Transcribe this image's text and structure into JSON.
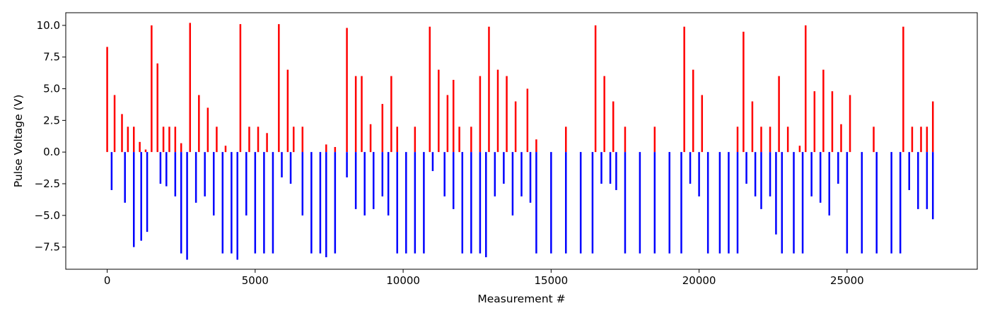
{
  "chart_data": {
    "type": "bar",
    "title": "",
    "xlabel": "Measurement #",
    "ylabel": "Pulse Voltage (V)",
    "xlim": [
      -1400,
      29400
    ],
    "ylim": [
      -9.25,
      11.0
    ],
    "x_ticks": [
      0,
      5000,
      10000,
      15000,
      20000,
      25000
    ],
    "x_tick_labels": [
      "0",
      "5000",
      "10000",
      "15000",
      "20000",
      "25000"
    ],
    "y_ticks": [
      10.0,
      7.5,
      5.0,
      2.5,
      0.0,
      -2.5,
      -5.0,
      -7.5
    ],
    "y_tick_labels": [
      "10.0",
      "7.5",
      "5.0",
      "2.5",
      "0.0",
      "−2.5",
      "−5.0",
      "−7.5"
    ],
    "grid": false,
    "series": [
      {
        "color": "#ff0000",
        "values": [
          [
            0,
            8.3
          ],
          [
            250,
            4.5
          ],
          [
            500,
            3.0
          ],
          [
            700,
            2.0
          ],
          [
            900,
            2.0
          ],
          [
            1100,
            0.8
          ],
          [
            1300,
            0.2
          ],
          [
            1500,
            10.0
          ],
          [
            1700,
            7.0
          ],
          [
            1900,
            2.0
          ],
          [
            2100,
            2.0
          ],
          [
            2300,
            2.0
          ],
          [
            2500,
            0.7
          ],
          [
            2800,
            10.2
          ],
          [
            3100,
            4.5
          ],
          [
            3400,
            3.5
          ],
          [
            3700,
            2.0
          ],
          [
            4000,
            0.5
          ],
          [
            4500,
            10.1
          ],
          [
            4800,
            2.0
          ],
          [
            5100,
            2.0
          ],
          [
            5400,
            1.5
          ],
          [
            5800,
            10.1
          ],
          [
            6100,
            6.5
          ],
          [
            6300,
            2.0
          ],
          [
            6600,
            2.0
          ],
          [
            7400,
            0.6
          ],
          [
            7700,
            0.4
          ],
          [
            8100,
            9.8
          ],
          [
            8400,
            6.0
          ],
          [
            8600,
            6.0
          ],
          [
            8900,
            2.2
          ],
          [
            9300,
            3.8
          ],
          [
            9600,
            6.0
          ],
          [
            9800,
            2.0
          ],
          [
            10400,
            2.0
          ],
          [
            10900,
            9.9
          ],
          [
            11200,
            6.5
          ],
          [
            11500,
            4.5
          ],
          [
            11700,
            5.7
          ],
          [
            11900,
            2.0
          ],
          [
            12300,
            2.0
          ],
          [
            12600,
            6.0
          ],
          [
            12900,
            9.9
          ],
          [
            13200,
            6.5
          ],
          [
            13500,
            6.0
          ],
          [
            13800,
            4.0
          ],
          [
            14200,
            5.0
          ],
          [
            14500,
            1.0
          ],
          [
            15500,
            2.0
          ],
          [
            16500,
            10.0
          ],
          [
            16800,
            6.0
          ],
          [
            17100,
            4.0
          ],
          [
            17500,
            2.0
          ],
          [
            18500,
            2.0
          ],
          [
            19500,
            9.9
          ],
          [
            19800,
            6.5
          ],
          [
            20100,
            4.5
          ],
          [
            21300,
            2.0
          ],
          [
            21500,
            9.5
          ],
          [
            21800,
            4.0
          ],
          [
            22100,
            2.0
          ],
          [
            22400,
            2.0
          ],
          [
            22700,
            6.0
          ],
          [
            23000,
            2.0
          ],
          [
            23400,
            0.5
          ],
          [
            23600,
            10.0
          ],
          [
            23900,
            4.8
          ],
          [
            24200,
            6.5
          ],
          [
            24500,
            4.8
          ],
          [
            24800,
            2.2
          ],
          [
            25100,
            4.5
          ],
          [
            25900,
            2.0
          ],
          [
            26900,
            9.9
          ],
          [
            27200,
            2.0
          ],
          [
            27500,
            2.0
          ],
          [
            27700,
            2.0
          ],
          [
            27900,
            4.0
          ]
        ]
      },
      {
        "color": "#0000ff",
        "values": [
          [
            150,
            -3.0
          ],
          [
            600,
            -4.0
          ],
          [
            900,
            -7.5
          ],
          [
            1150,
            -7.0
          ],
          [
            1350,
            -6.3
          ],
          [
            1800,
            -2.5
          ],
          [
            2000,
            -2.7
          ],
          [
            2300,
            -3.5
          ],
          [
            2500,
            -8.0
          ],
          [
            2700,
            -8.5
          ],
          [
            3000,
            -4.0
          ],
          [
            3300,
            -3.5
          ],
          [
            3600,
            -5.0
          ],
          [
            3900,
            -8.0
          ],
          [
            4200,
            -8.0
          ],
          [
            4400,
            -8.5
          ],
          [
            4700,
            -5.0
          ],
          [
            5000,
            -8.0
          ],
          [
            5300,
            -8.0
          ],
          [
            5600,
            -8.0
          ],
          [
            5900,
            -2.0
          ],
          [
            6200,
            -2.5
          ],
          [
            6600,
            -5.0
          ],
          [
            6900,
            -8.0
          ],
          [
            7200,
            -8.0
          ],
          [
            7400,
            -8.3
          ],
          [
            7700,
            -8.0
          ],
          [
            8100,
            -2.0
          ],
          [
            8400,
            -4.5
          ],
          [
            8700,
            -5.0
          ],
          [
            9000,
            -4.5
          ],
          [
            9300,
            -3.5
          ],
          [
            9500,
            -5.0
          ],
          [
            9800,
            -8.0
          ],
          [
            10100,
            -8.0
          ],
          [
            10400,
            -8.0
          ],
          [
            10700,
            -8.0
          ],
          [
            11000,
            -1.5
          ],
          [
            11400,
            -3.5
          ],
          [
            11700,
            -4.5
          ],
          [
            12000,
            -8.0
          ],
          [
            12300,
            -8.0
          ],
          [
            12600,
            -8.0
          ],
          [
            12800,
            -8.3
          ],
          [
            13100,
            -3.5
          ],
          [
            13400,
            -2.5
          ],
          [
            13700,
            -5.0
          ],
          [
            14000,
            -3.5
          ],
          [
            14300,
            -4.0
          ],
          [
            14500,
            -8.0
          ],
          [
            15000,
            -8.0
          ],
          [
            15500,
            -8.0
          ],
          [
            16000,
            -8.0
          ],
          [
            16400,
            -8.0
          ],
          [
            16700,
            -2.5
          ],
          [
            17000,
            -2.5
          ],
          [
            17200,
            -3.0
          ],
          [
            17500,
            -8.0
          ],
          [
            18000,
            -8.0
          ],
          [
            18500,
            -8.0
          ],
          [
            19000,
            -8.0
          ],
          [
            19400,
            -8.0
          ],
          [
            19700,
            -2.5
          ],
          [
            20000,
            -3.5
          ],
          [
            20300,
            -8.0
          ],
          [
            20700,
            -8.0
          ],
          [
            21000,
            -8.0
          ],
          [
            21300,
            -8.0
          ],
          [
            21600,
            -2.5
          ],
          [
            21900,
            -3.5
          ],
          [
            22100,
            -4.5
          ],
          [
            22400,
            -3.5
          ],
          [
            22600,
            -6.5
          ],
          [
            22800,
            -8.0
          ],
          [
            23200,
            -8.0
          ],
          [
            23500,
            -8.0
          ],
          [
            23800,
            -3.5
          ],
          [
            24100,
            -4.0
          ],
          [
            24400,
            -5.0
          ],
          [
            24700,
            -2.5
          ],
          [
            25000,
            -8.0
          ],
          [
            25500,
            -8.0
          ],
          [
            26000,
            -8.0
          ],
          [
            26500,
            -8.0
          ],
          [
            26800,
            -8.0
          ],
          [
            27100,
            -3.0
          ],
          [
            27400,
            -4.5
          ],
          [
            27700,
            -4.5
          ],
          [
            27900,
            -5.3
          ]
        ]
      }
    ]
  }
}
